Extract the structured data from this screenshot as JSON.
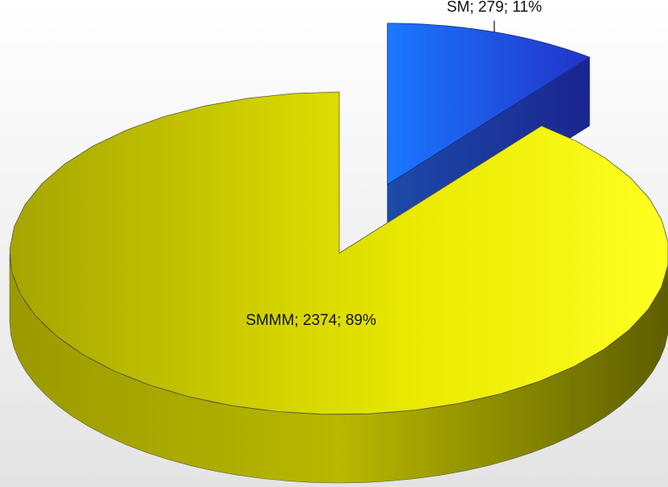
{
  "chart_data": {
    "type": "pie3d",
    "values": [
      279,
      2374
    ],
    "value_labels": [
      "SM; 279; 11%",
      "SMMM; 2374; 89%"
    ],
    "colors": [
      "#1f6bff",
      "#ffff10"
    ],
    "explode": [
      0.45,
      0
    ]
  }
}
